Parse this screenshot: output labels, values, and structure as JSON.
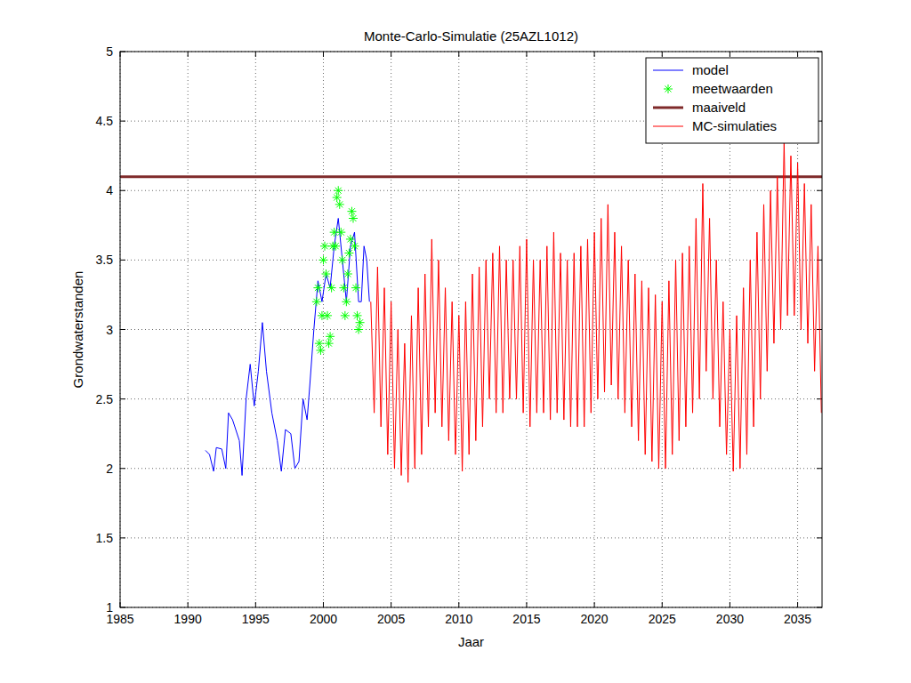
{
  "chart_data": {
    "type": "line",
    "title": "Monte-Carlo-Simulatie (25AZL1012)",
    "x_label": "Jaar",
    "y_label": "Grondwaterstanden",
    "xlim": [
      1985,
      2036.8
    ],
    "xticks": [
      1985,
      1990,
      1995,
      2000,
      2005,
      2010,
      2015,
      2020,
      2025,
      2030,
      2035
    ],
    "ylim": [
      1,
      5
    ],
    "yticks": [
      1,
      1.5,
      2,
      2.5,
      3,
      3.5,
      4,
      4.5,
      5
    ],
    "grid": true,
    "legend": "northeast",
    "series": [
      {
        "name": "model",
        "type": "line",
        "color": "#0000ff",
        "line_style": "solid",
        "x": [
          1991.3,
          1991.6,
          1991.9,
          1992.1,
          1992.5,
          1992.8,
          1993,
          1993.3,
          1993.8,
          1994,
          1994.3,
          1994.6,
          1994.9,
          1995.2,
          1995.5,
          1995.8,
          1996.2,
          1996.6,
          1996.9,
          1997.2,
          1997.6,
          1997.9,
          1998.2,
          1998.5,
          1998.8,
          1999,
          1999.3,
          1999.6,
          1999.9,
          2000.2,
          2000.5,
          2000.8,
          2001.1,
          2001.4,
          2001.7,
          2002,
          2002.3,
          2002.6,
          2002.8,
          2003,
          2003.2,
          2003.4
        ],
        "values": [
          2.13,
          2.1,
          1.98,
          2.15,
          2.14,
          2.0,
          2.4,
          2.35,
          2.2,
          1.95,
          2.5,
          2.75,
          2.45,
          2.7,
          3.05,
          2.7,
          2.4,
          2.2,
          1.98,
          2.28,
          2.25,
          2.0,
          2.05,
          2.5,
          2.35,
          2.6,
          3.0,
          3.35,
          3.2,
          3.4,
          3.3,
          3.6,
          3.8,
          3.5,
          3.2,
          3.6,
          3.7,
          3.2,
          3.2,
          3.6,
          3.5,
          3.2
        ]
      },
      {
        "name": "meetwaarden",
        "type": "scatter",
        "color": "#00ff00",
        "marker": "asterisk",
        "x": [
          1999.5,
          1999.6,
          1999.7,
          1999.8,
          1999.9,
          2000,
          2000.1,
          2000.2,
          2000.3,
          2000.4,
          2000.5,
          2000.6,
          2000.7,
          2000.8,
          2000.9,
          2001,
          2001.1,
          2001.2,
          2001.3,
          2001.4,
          2001.5,
          2001.6,
          2001.7,
          2001.8,
          2001.9,
          2002,
          2002.1,
          2002.2,
          2002.3,
          2002.4,
          2002.5,
          2002.6,
          2002.7
        ],
        "values": [
          3.2,
          3.3,
          2.9,
          2.85,
          3.1,
          3.5,
          3.6,
          3.4,
          3.1,
          2.9,
          2.95,
          3.3,
          3.6,
          3.7,
          3.6,
          3.95,
          4.0,
          3.9,
          3.7,
          3.5,
          3.3,
          3.1,
          3.2,
          3.4,
          3.55,
          3.65,
          3.85,
          3.8,
          3.6,
          3.3,
          3.1,
          3.0,
          3.05
        ]
      },
      {
        "name": "maaiveld",
        "type": "line",
        "color": "#7f2a2a",
        "line_style": "thick",
        "x": [
          1985,
          2036.8
        ],
        "values": [
          4.1,
          4.1
        ]
      },
      {
        "name": "MC-simulaties",
        "type": "line",
        "color": "#ff0000",
        "line_style": "solid",
        "x": [
          2003.5,
          2003.75,
          2004,
          2004.25,
          2004.5,
          2004.75,
          2005,
          2005.25,
          2005.5,
          2005.75,
          2006,
          2006.25,
          2006.5,
          2006.75,
          2007,
          2007.25,
          2007.5,
          2007.75,
          2008,
          2008.25,
          2008.5,
          2008.75,
          2009,
          2009.25,
          2009.5,
          2009.75,
          2010,
          2010.25,
          2010.5,
          2010.75,
          2011,
          2011.25,
          2011.5,
          2011.75,
          2012,
          2012.25,
          2012.5,
          2012.75,
          2013,
          2013.25,
          2013.5,
          2013.75,
          2014,
          2014.25,
          2014.5,
          2014.75,
          2015,
          2015.25,
          2015.5,
          2015.75,
          2016,
          2016.25,
          2016.5,
          2016.75,
          2017,
          2017.25,
          2017.5,
          2017.75,
          2018,
          2018.25,
          2018.5,
          2018.75,
          2019,
          2019.25,
          2019.5,
          2019.75,
          2020,
          2020.25,
          2020.5,
          2020.75,
          2021,
          2021.25,
          2021.5,
          2021.75,
          2022,
          2022.25,
          2022.5,
          2022.75,
          2023,
          2023.25,
          2023.5,
          2023.75,
          2024,
          2024.25,
          2024.5,
          2024.75,
          2025,
          2025.25,
          2025.5,
          2025.75,
          2026,
          2026.25,
          2026.5,
          2026.75,
          2027,
          2027.25,
          2027.5,
          2027.75,
          2028,
          2028.25,
          2028.5,
          2028.75,
          2029,
          2029.25,
          2029.5,
          2029.75,
          2030,
          2030.25,
          2030.5,
          2030.75,
          2031,
          2031.25,
          2031.5,
          2031.75,
          2032,
          2032.25,
          2032.5,
          2032.75,
          2033,
          2033.25,
          2033.5,
          2033.75,
          2034,
          2034.25,
          2034.5,
          2034.75,
          2035,
          2035.25,
          2035.5,
          2035.75,
          2036,
          2036.25,
          2036.5,
          2036.75
        ],
        "values": [
          3.2,
          2.4,
          3.45,
          2.3,
          3.3,
          2.1,
          3.2,
          2.0,
          3.0,
          1.95,
          2.9,
          1.9,
          3.1,
          2.0,
          3.3,
          2.1,
          3.4,
          2.3,
          3.65,
          2.4,
          3.5,
          2.3,
          3.3,
          2.2,
          3.2,
          2.1,
          3.1,
          1.98,
          3.2,
          2.1,
          3.4,
          2.2,
          3.45,
          2.3,
          3.5,
          2.5,
          3.55,
          2.4,
          3.6,
          2.4,
          3.5,
          2.5,
          3.5,
          2.5,
          3.6,
          2.4,
          3.65,
          2.3,
          3.5,
          2.4,
          3.5,
          2.4,
          3.6,
          2.35,
          3.7,
          2.4,
          3.55,
          2.35,
          3.5,
          2.3,
          3.55,
          2.3,
          3.6,
          2.3,
          3.65,
          2.4,
          3.7,
          2.5,
          3.8,
          2.55,
          3.9,
          2.6,
          3.7,
          2.5,
          3.6,
          2.4,
          3.5,
          2.3,
          3.4,
          2.2,
          3.35,
          2.1,
          3.3,
          2.05,
          3.25,
          2.0,
          3.2,
          2.0,
          3.35,
          2.1,
          3.5,
          2.2,
          3.55,
          2.3,
          3.6,
          2.4,
          3.8,
          2.5,
          4.05,
          2.7,
          3.8,
          2.5,
          3.5,
          2.3,
          3.2,
          2.1,
          3.0,
          1.98,
          3.1,
          2.0,
          3.3,
          2.1,
          3.5,
          2.3,
          3.7,
          2.5,
          3.9,
          2.7,
          4.0,
          2.9,
          4.1,
          3.0,
          4.35,
          3.1,
          4.25,
          3.1,
          4.2,
          3.0,
          4.05,
          2.9,
          3.9,
          2.7,
          3.6,
          2.4
        ]
      }
    ]
  }
}
